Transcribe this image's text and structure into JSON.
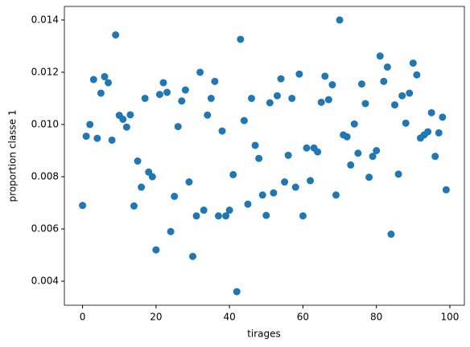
{
  "chart_data": {
    "type": "scatter",
    "xlabel": "tirages",
    "ylabel": "proportion classe 1",
    "x": [
      0,
      1,
      2,
      3,
      4,
      5,
      6,
      7,
      8,
      9,
      10,
      11,
      12,
      13,
      14,
      15,
      16,
      17,
      18,
      19,
      20,
      21,
      22,
      23,
      24,
      25,
      26,
      27,
      28,
      29,
      30,
      31,
      32,
      33,
      34,
      35,
      36,
      37,
      38,
      39,
      40,
      41,
      42,
      43,
      44,
      45,
      46,
      47,
      48,
      49,
      50,
      51,
      52,
      53,
      54,
      55,
      56,
      57,
      58,
      59,
      60,
      61,
      62,
      63,
      64,
      65,
      66,
      67,
      68,
      69,
      70,
      71,
      72,
      73,
      74,
      75,
      76,
      77,
      78,
      79,
      80,
      81,
      82,
      83,
      84,
      85,
      86,
      87,
      88,
      89,
      90,
      91,
      92,
      93,
      94,
      95,
      96,
      97,
      98,
      99
    ],
    "series": [
      {
        "color": "#1f77b4",
        "values": [
          0.0069,
          0.00955,
          0.01,
          0.01172,
          0.00947,
          0.0112,
          0.01183,
          0.0116,
          0.0094,
          0.01343,
          0.01035,
          0.0102,
          0.0099,
          0.01037,
          0.00688,
          0.0086,
          0.0076,
          0.011,
          0.00818,
          0.008,
          0.0052,
          0.01115,
          0.0116,
          0.01123,
          0.0059,
          0.00725,
          0.00992,
          0.0109,
          0.01132,
          0.0078,
          0.00495,
          0.0065,
          0.012,
          0.00672,
          0.01036,
          0.011,
          0.01165,
          0.0065,
          0.00975,
          0.0065,
          0.00672,
          0.00808,
          0.0036,
          0.01326,
          0.01015,
          0.00695,
          0.011,
          0.0092,
          0.0087,
          0.0073,
          0.00652,
          0.01083,
          0.00738,
          0.0111,
          0.01175,
          0.0078,
          0.00882,
          0.011,
          0.0076,
          0.01193,
          0.0065,
          0.0091,
          0.00785,
          0.0091,
          0.00895,
          0.01085,
          0.01185,
          0.01095,
          0.01152,
          0.0073,
          0.014,
          0.0096,
          0.00953,
          0.00845,
          0.01002,
          0.0089,
          0.01155,
          0.0108,
          0.00798,
          0.00878,
          0.009,
          0.01262,
          0.01165,
          0.0122,
          0.0058,
          0.01075,
          0.0081,
          0.0111,
          0.01005,
          0.0112,
          0.01235,
          0.0119,
          0.00948,
          0.0096,
          0.00972,
          0.01045,
          0.00878,
          0.00968,
          0.01028,
          0.0075
        ]
      }
    ],
    "xlim": [
      -4.95,
      103.95
    ],
    "xticks": [
      0,
      20,
      40,
      60,
      80,
      100
    ],
    "ylim": [
      0.00308,
      0.01452
    ],
    "yticks": [
      0.004,
      0.006,
      0.008,
      {
        "value": 0.01,
        "label": "0.010"
      },
      0.012,
      0.014
    ]
  }
}
